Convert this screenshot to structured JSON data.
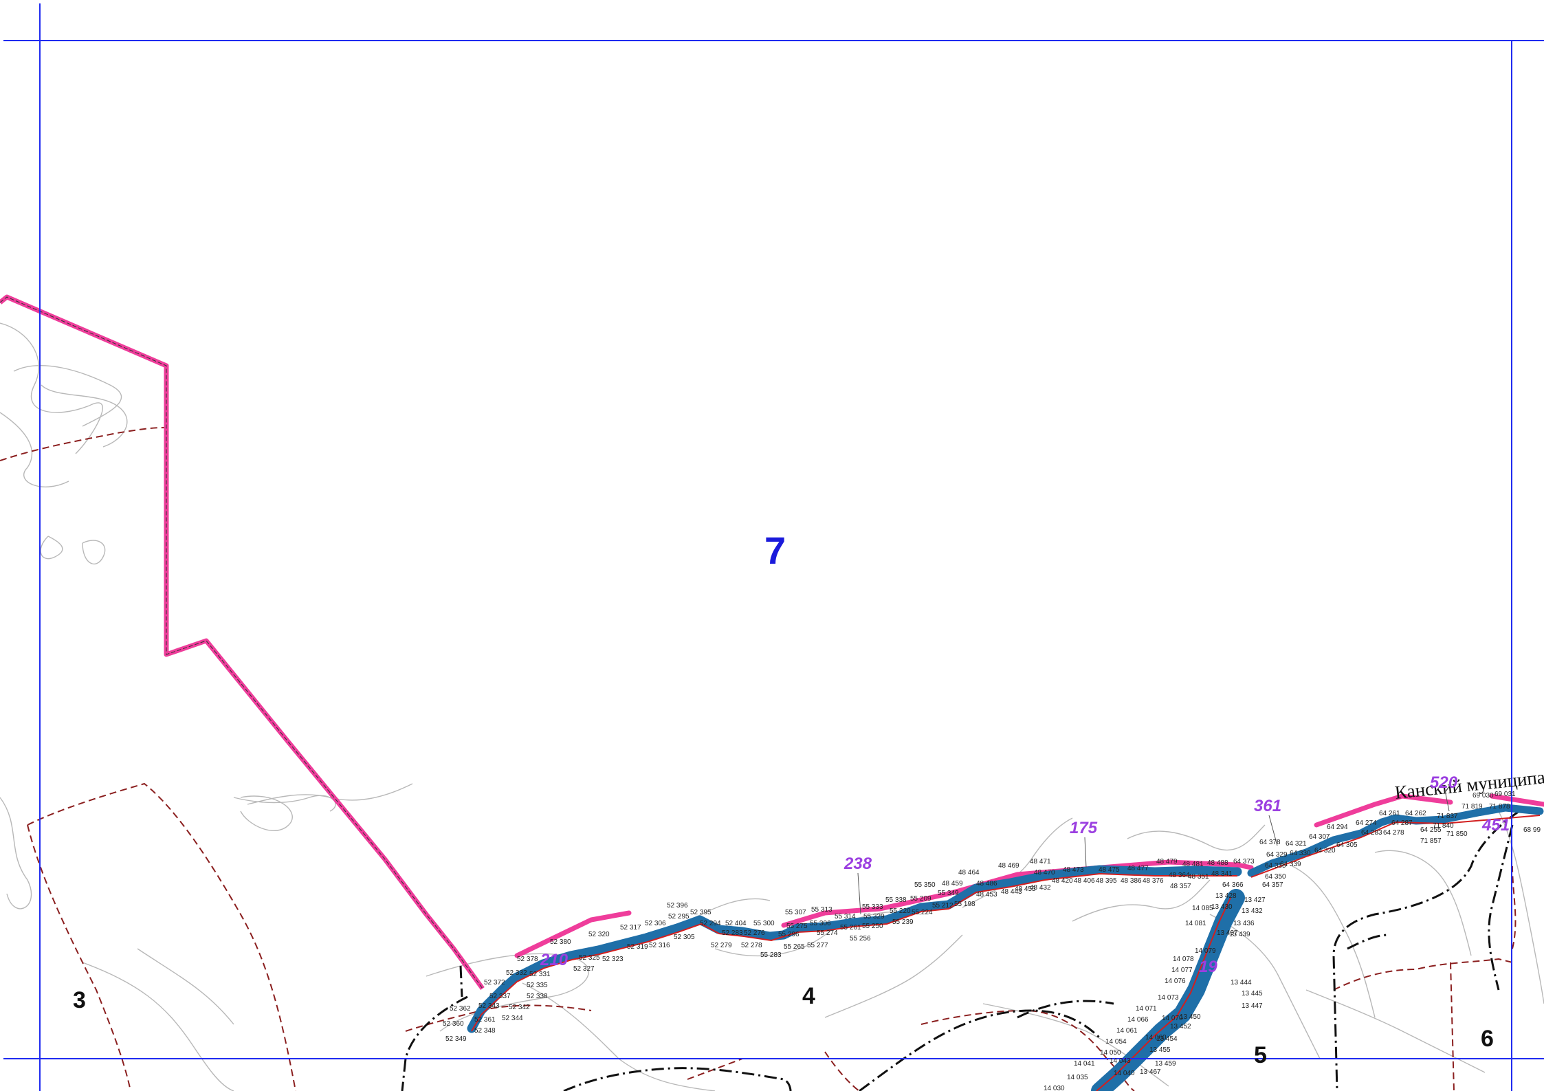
{
  "main_zone_label": "7",
  "sheet_labels": [
    "3",
    "4",
    "5",
    "6"
  ],
  "region_label": "Канский муниципальный район",
  "segment_labels": [
    "210",
    "238",
    "175",
    "361",
    "520",
    "451",
    "19"
  ],
  "point_labels": [
    "52 378",
    "52 380",
    "52 320",
    "52 317",
    "52 306",
    "52 396",
    "52 295",
    "52 395",
    "52 294",
    "52 404",
    "52 283",
    "52 276",
    "52 279",
    "52 278",
    "52 325",
    "52 323",
    "52 319",
    "52 316",
    "52 305",
    "52 327",
    "52 332",
    "52 331",
    "52 335",
    "52 338",
    "52 372",
    "52 342",
    "52 344",
    "52 362",
    "52 360",
    "52 348",
    "52 349",
    "52 361",
    "52 343",
    "52 337",
    "55 300",
    "55 307",
    "55 313",
    "55 314",
    "55 333",
    "55 338",
    "55 350",
    "55 275",
    "55 296",
    "55 283",
    "55 265",
    "55 277",
    "55 274",
    "55 261",
    "55 256",
    "55 250",
    "55 239",
    "55 224",
    "55 212",
    "55 198",
    "55 349",
    "55 209",
    "55 220",
    "55 306",
    "55 329",
    "48 464",
    "48 469",
    "48 471",
    "48 470",
    "48 473",
    "48 475",
    "48 477",
    "48 479",
    "48 481",
    "48 488",
    "48 459",
    "48 453",
    "48 443",
    "48 432",
    "48 420",
    "48 406",
    "48 395",
    "48 386",
    "48 376",
    "48 364",
    "48 357",
    "48 351",
    "48 341",
    "48 486",
    "48 455",
    "64 373",
    "64 378",
    "64 321",
    "64 329",
    "64 335",
    "64 339",
    "64 350",
    "64 357",
    "64 366",
    "64 307",
    "64 294",
    "64 274",
    "64 261",
    "64 262",
    "64 287",
    "64 283",
    "64 278",
    "64 255",
    "64 320",
    "64 305",
    "64 330",
    "71 837",
    "71 819",
    "71 840",
    "71 850",
    "71 857",
    "71 878",
    "69 030",
    "69 031",
    "68 99",
    "13 428",
    "13 427",
    "13 432",
    "13 436",
    "13 439",
    "13 444",
    "13 445",
    "13 447",
    "13 450",
    "13 452",
    "13 454",
    "13 455",
    "13 459",
    "13 467",
    "13 430",
    "13 437",
    "14 085",
    "14 081",
    "14 079",
    "14 078",
    "14 077",
    "14 076",
    "14 073",
    "14 071",
    "14 066",
    "14 061",
    "14 054",
    "14 050",
    "14 043",
    "14 041",
    "14 035",
    "14 030",
    "14 070",
    "14 060",
    "14 040"
  ],
  "colors": {
    "frame_line": "#1f2bf0",
    "boundary_pink": "#ef3d9b",
    "river_blue": "#1f6fa8",
    "dashed_brown": "#8b1f1f",
    "contour_grey": "#b8b8b8",
    "black_dash": "#111111",
    "segment_label": "#9b3fe0",
    "main_label": "#1a1adb"
  }
}
